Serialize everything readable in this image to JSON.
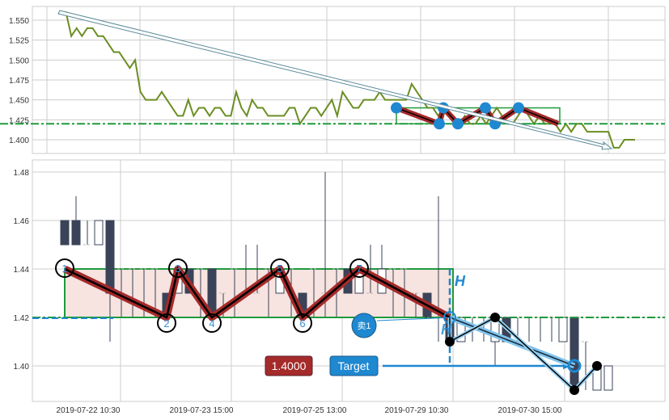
{
  "chart_data": [
    {
      "type": "line",
      "panel": "top",
      "yticks": [
        1.4,
        1.425,
        1.45,
        1.475,
        1.5,
        1.525,
        1.55
      ],
      "ylim": [
        1.38,
        1.565
      ],
      "grid": true,
      "line_color": "#6b8e23",
      "values": [
        1.56,
        1.56,
        1.53,
        1.54,
        1.53,
        1.54,
        1.54,
        1.53,
        1.53,
        1.52,
        1.51,
        1.51,
        1.5,
        1.49,
        1.5,
        1.46,
        1.45,
        1.45,
        1.45,
        1.46,
        1.45,
        1.44,
        1.43,
        1.43,
        1.45,
        1.43,
        1.44,
        1.44,
        1.43,
        1.44,
        1.44,
        1.43,
        1.43,
        1.46,
        1.44,
        1.43,
        1.45,
        1.44,
        1.44,
        1.43,
        1.43,
        1.43,
        1.43,
        1.44,
        1.44,
        1.42,
        1.43,
        1.44,
        1.44,
        1.43,
        1.44,
        1.45,
        1.43,
        1.46,
        1.45,
        1.44,
        1.44,
        1.45,
        1.45,
        1.45,
        1.46,
        1.45,
        1.45,
        1.45,
        1.45,
        1.45,
        1.47,
        1.46,
        1.45,
        1.44,
        1.44,
        1.43,
        1.44,
        1.43,
        1.42,
        1.42,
        1.43,
        1.42,
        1.42,
        1.43,
        1.42,
        1.43,
        1.44,
        1.43,
        1.42,
        1.42,
        1.43,
        1.44,
        1.43,
        1.42,
        1.43,
        1.42,
        1.42,
        1.42,
        1.41,
        1.42,
        1.41,
        1.42,
        1.42,
        1.41,
        1.41,
        1.41,
        1.41,
        1.41,
        1.39,
        1.39,
        1.4,
        1.4,
        1.4
      ],
      "support_level": 1.42,
      "box": {
        "y_top": 1.44,
        "y_bottom": 1.42
      },
      "trend_arrow": {
        "from": 1.56,
        "to": 1.39
      }
    },
    {
      "type": "candlestick",
      "panel": "bottom",
      "yticks": [
        1.4,
        1.42,
        1.44,
        1.46,
        1.48
      ],
      "ylim": [
        1.385,
        1.485
      ],
      "grid": true,
      "xtick_labels": [
        {
          "index": 2,
          "label": "2019-07-22 10:30"
        },
        {
          "index": 12,
          "label": "2019-07-23 15:00"
        },
        {
          "index": 22,
          "label": "2019-07-25 13:00"
        },
        {
          "index": 31,
          "label": "2019-07-29 10:30"
        },
        {
          "index": 41,
          "label": "2019-07-30 15:00"
        }
      ],
      "candles": [
        [
          1.46,
          1.46,
          1.45,
          1.45
        ],
        [
          1.46,
          1.47,
          1.45,
          1.45
        ],
        [
          1.45,
          1.46,
          1.45,
          1.45
        ],
        [
          1.45,
          1.46,
          1.45,
          1.46
        ],
        [
          1.46,
          1.46,
          1.41,
          1.43
        ],
        [
          1.44,
          1.44,
          1.42,
          1.44
        ],
        [
          1.44,
          1.44,
          1.42,
          1.44
        ],
        [
          1.44,
          1.44,
          1.42,
          1.44
        ],
        [
          1.44,
          1.44,
          1.42,
          1.44
        ],
        [
          1.43,
          1.43,
          1.42,
          1.42
        ],
        [
          1.43,
          1.44,
          1.43,
          1.44
        ],
        [
          1.44,
          1.44,
          1.43,
          1.43
        ],
        [
          1.44,
          1.44,
          1.42,
          1.44
        ],
        [
          1.44,
          1.44,
          1.42,
          1.42
        ],
        [
          1.43,
          1.43,
          1.42,
          1.43
        ],
        [
          1.44,
          1.44,
          1.42,
          1.44
        ],
        [
          1.43,
          1.45,
          1.43,
          1.43
        ],
        [
          1.43,
          1.45,
          1.43,
          1.43
        ],
        [
          1.44,
          1.44,
          1.42,
          1.44
        ],
        [
          1.43,
          1.44,
          1.43,
          1.44
        ],
        [
          1.44,
          1.44,
          1.42,
          1.44
        ],
        [
          1.43,
          1.43,
          1.42,
          1.42
        ],
        [
          1.44,
          1.44,
          1.42,
          1.44
        ],
        [
          1.43,
          1.48,
          1.42,
          1.43
        ],
        [
          1.44,
          1.44,
          1.42,
          1.44
        ],
        [
          1.44,
          1.44,
          1.43,
          1.43
        ],
        [
          1.43,
          1.44,
          1.43,
          1.44
        ],
        [
          1.43,
          1.45,
          1.43,
          1.43
        ],
        [
          1.43,
          1.45,
          1.43,
          1.44
        ],
        [
          1.44,
          1.44,
          1.42,
          1.44
        ],
        [
          1.44,
          1.44,
          1.42,
          1.44
        ],
        [
          1.43,
          1.43,
          1.42,
          1.43
        ],
        [
          1.43,
          1.43,
          1.42,
          1.42
        ],
        [
          1.42,
          1.47,
          1.41,
          1.42
        ],
        [
          1.42,
          1.42,
          1.41,
          1.41
        ],
        [
          1.41,
          1.42,
          1.41,
          1.42
        ],
        [
          1.42,
          1.42,
          1.41,
          1.42
        ],
        [
          1.42,
          1.42,
          1.41,
          1.42
        ],
        [
          1.41,
          1.42,
          1.4,
          1.42
        ],
        [
          1.42,
          1.42,
          1.41,
          1.41
        ],
        [
          1.42,
          1.42,
          1.41,
          1.42
        ],
        [
          1.42,
          1.42,
          1.41,
          1.42
        ],
        [
          1.42,
          1.42,
          1.41,
          1.42
        ],
        [
          1.42,
          1.42,
          1.41,
          1.42
        ],
        [
          1.41,
          1.42,
          1.41,
          1.42
        ],
        [
          1.42,
          1.42,
          1.39,
          1.39
        ],
        [
          1.41,
          1.41,
          1.39,
          1.41
        ],
        [
          1.39,
          1.4,
          1.39,
          1.4
        ],
        [
          1.39,
          1.4,
          1.39,
          1.4
        ]
      ],
      "candle_format": [
        "open",
        "high",
        "low",
        "close"
      ],
      "support_level": 1.42,
      "box": {
        "start_index": 0,
        "end_index": 34,
        "y_top": 1.44,
        "y_bottom": 1.42
      },
      "zigzag": [
        {
          "label": "1",
          "index": 0,
          "price": 1.44
        },
        {
          "label": "2",
          "index": 9,
          "price": 1.42
        },
        {
          "label": "3",
          "index": 10,
          "price": 1.44
        },
        {
          "label": "4",
          "index": 13,
          "price": 1.42
        },
        {
          "label": "5",
          "index": 19,
          "price": 1.44
        },
        {
          "label": "6",
          "index": 21,
          "price": 1.42
        },
        {
          "label": "7",
          "index": 26,
          "price": 1.44
        },
        {
          "label": "",
          "index": 34,
          "price": 1.42
        }
      ],
      "projection_points": [
        {
          "index": 34,
          "price": 1.41
        },
        {
          "index": 38,
          "price": 1.42
        },
        {
          "index": 45,
          "price": 1.39
        },
        {
          "index": 47,
          "price": 1.4
        }
      ],
      "breakout": {
        "index": 34,
        "price": 1.42,
        "target_index": 45,
        "target_price": 1.4
      },
      "h_label": "H",
      "sell_label": "卖1",
      "price_label": "1.4000",
      "target_label": "Target",
      "colors": {
        "bear": "#3a4358",
        "box_border": "#1e9a3c",
        "box_fill": "#f7e3df",
        "zigzag": "#a52a2a",
        "accent": "#1e88d0",
        "support": "#1e9a3c"
      }
    }
  ]
}
